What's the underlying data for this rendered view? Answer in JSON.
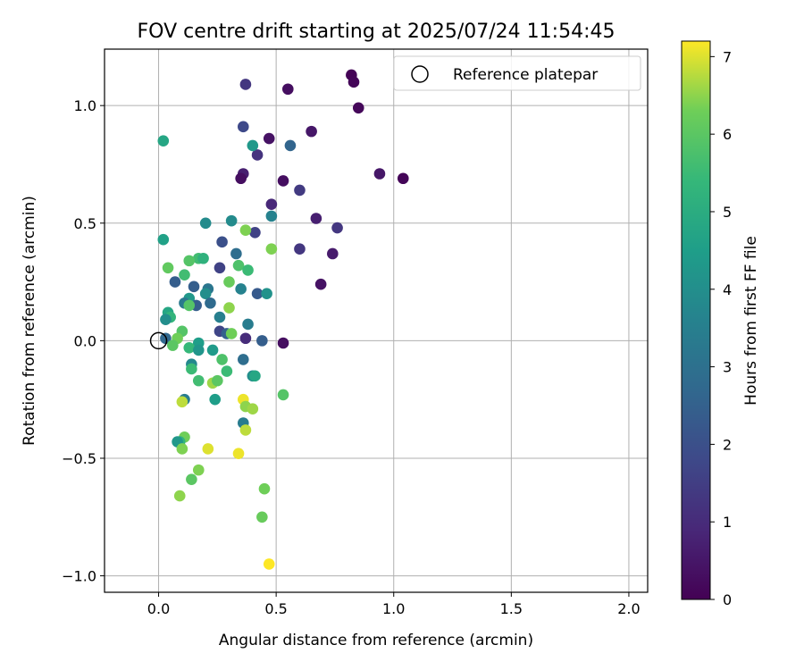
{
  "chart_data": {
    "type": "scatter",
    "title": "FOV centre drift starting at 2025/07/24 11:54:45",
    "xlabel": "Angular distance from reference (arcmin)",
    "ylabel": "Rotation from reference (arcmin)",
    "xlim": [
      -0.23,
      2.08
    ],
    "ylim": [
      -1.07,
      1.24
    ],
    "xticks": [
      0.0,
      0.5,
      1.0,
      1.5,
      2.0
    ],
    "xtick_labels": [
      "0.0",
      "0.5",
      "1.0",
      "1.5",
      "2.0"
    ],
    "yticks": [
      -1.0,
      -0.5,
      0.0,
      0.5,
      1.0
    ],
    "ytick_labels": [
      "−1.0",
      "−0.5",
      "0.0",
      "0.5",
      "1.0"
    ],
    "grid": true,
    "legend": {
      "placement": "top-right",
      "entries": [
        "Reference platepar"
      ]
    },
    "reference_point": {
      "x": 0.0,
      "y": 0.0,
      "label": "Reference platepar"
    },
    "colorbar": {
      "label": "Hours from first FF file",
      "colormap": "viridis",
      "range": [
        0,
        7.2
      ],
      "ticks": [
        0,
        1,
        2,
        3,
        4,
        5,
        6,
        7
      ],
      "tick_labels": [
        "0",
        "1",
        "2",
        "3",
        "4",
        "5",
        "6",
        "7"
      ]
    },
    "points": [
      {
        "x": 0.82,
        "y": 1.13,
        "c": 0.05
      },
      {
        "x": 0.83,
        "y": 1.1,
        "c": 0.1
      },
      {
        "x": 0.85,
        "y": 0.99,
        "c": 0.15
      },
      {
        "x": 1.04,
        "y": 0.69,
        "c": 0.1
      },
      {
        "x": 0.94,
        "y": 0.71,
        "c": 0.5
      },
      {
        "x": 0.55,
        "y": 1.07,
        "c": 0.3
      },
      {
        "x": 0.37,
        "y": 1.09,
        "c": 1.3
      },
      {
        "x": 0.65,
        "y": 0.89,
        "c": 0.5
      },
      {
        "x": 0.47,
        "y": 0.86,
        "c": 0.4
      },
      {
        "x": 0.36,
        "y": 0.91,
        "c": 1.8
      },
      {
        "x": 0.42,
        "y": 0.79,
        "c": 1.2
      },
      {
        "x": 0.56,
        "y": 0.83,
        "c": 2.6
      },
      {
        "x": 0.4,
        "y": 0.83,
        "c": 4.3
      },
      {
        "x": 0.02,
        "y": 0.85,
        "c": 4.8
      },
      {
        "x": 0.36,
        "y": 0.71,
        "c": 0.7
      },
      {
        "x": 0.35,
        "y": 0.69,
        "c": 0.3
      },
      {
        "x": 0.53,
        "y": 0.68,
        "c": 0.3
      },
      {
        "x": 0.6,
        "y": 0.64,
        "c": 1.4
      },
      {
        "x": 0.48,
        "y": 0.58,
        "c": 0.9
      },
      {
        "x": 0.48,
        "y": 0.53,
        "c": 3.6
      },
      {
        "x": 0.67,
        "y": 0.52,
        "c": 0.7
      },
      {
        "x": 0.76,
        "y": 0.48,
        "c": 1.3
      },
      {
        "x": 0.31,
        "y": 0.51,
        "c": 3.9
      },
      {
        "x": 0.2,
        "y": 0.5,
        "c": 3.9
      },
      {
        "x": 0.41,
        "y": 0.46,
        "c": 1.6
      },
      {
        "x": 0.37,
        "y": 0.47,
        "c": 6.4
      },
      {
        "x": 0.02,
        "y": 0.43,
        "c": 4.6
      },
      {
        "x": 0.27,
        "y": 0.42,
        "c": 2.0
      },
      {
        "x": 0.6,
        "y": 0.39,
        "c": 1.3
      },
      {
        "x": 0.48,
        "y": 0.39,
        "c": 6.4
      },
      {
        "x": 0.74,
        "y": 0.37,
        "c": 0.6
      },
      {
        "x": 0.33,
        "y": 0.37,
        "c": 2.9
      },
      {
        "x": 0.17,
        "y": 0.35,
        "c": 5.6
      },
      {
        "x": 0.19,
        "y": 0.35,
        "c": 5.2
      },
      {
        "x": 0.13,
        "y": 0.34,
        "c": 5.9
      },
      {
        "x": 0.04,
        "y": 0.31,
        "c": 6.1
      },
      {
        "x": 0.26,
        "y": 0.31,
        "c": 1.6
      },
      {
        "x": 0.34,
        "y": 0.32,
        "c": 5.8
      },
      {
        "x": 0.38,
        "y": 0.3,
        "c": 5.5
      },
      {
        "x": 0.11,
        "y": 0.28,
        "c": 5.6
      },
      {
        "x": 0.07,
        "y": 0.25,
        "c": 2.4
      },
      {
        "x": 0.3,
        "y": 0.25,
        "c": 6.2
      },
      {
        "x": 0.69,
        "y": 0.24,
        "c": 0.4
      },
      {
        "x": 0.15,
        "y": 0.23,
        "c": 2.4
      },
      {
        "x": 0.21,
        "y": 0.22,
        "c": 3.2
      },
      {
        "x": 0.35,
        "y": 0.22,
        "c": 3.6
      },
      {
        "x": 0.42,
        "y": 0.2,
        "c": 2.3
      },
      {
        "x": 0.46,
        "y": 0.2,
        "c": 4.1
      },
      {
        "x": 0.2,
        "y": 0.2,
        "c": 4.0
      },
      {
        "x": 0.13,
        "y": 0.18,
        "c": 4.3
      },
      {
        "x": 0.11,
        "y": 0.16,
        "c": 3.3
      },
      {
        "x": 0.22,
        "y": 0.16,
        "c": 2.8
      },
      {
        "x": 0.16,
        "y": 0.15,
        "c": 2.4
      },
      {
        "x": 0.13,
        "y": 0.15,
        "c": 5.9
      },
      {
        "x": 0.3,
        "y": 0.14,
        "c": 6.5
      },
      {
        "x": 0.04,
        "y": 0.12,
        "c": 4.8
      },
      {
        "x": 0.05,
        "y": 0.1,
        "c": 5.3
      },
      {
        "x": 0.03,
        "y": 0.09,
        "c": 4.0
      },
      {
        "x": 0.26,
        "y": 0.1,
        "c": 3.5
      },
      {
        "x": 0.38,
        "y": 0.07,
        "c": 3.4
      },
      {
        "x": 0.1,
        "y": 0.04,
        "c": 5.9
      },
      {
        "x": 0.26,
        "y": 0.04,
        "c": 1.7
      },
      {
        "x": 0.29,
        "y": 0.03,
        "c": 2.5
      },
      {
        "x": 0.31,
        "y": 0.03,
        "c": 6.3
      },
      {
        "x": 0.08,
        "y": 0.01,
        "c": 6.3
      },
      {
        "x": 0.03,
        "y": 0.01,
        "c": 2.7
      },
      {
        "x": 0.37,
        "y": 0.01,
        "c": 1.0
      },
      {
        "x": 0.44,
        "y": 0.0,
        "c": 2.4
      },
      {
        "x": 0.17,
        "y": -0.01,
        "c": 4.5
      },
      {
        "x": 0.53,
        "y": -0.01,
        "c": 0.3
      },
      {
        "x": 0.06,
        "y": -0.02,
        "c": 6.0
      },
      {
        "x": 0.13,
        "y": -0.03,
        "c": 5.4
      },
      {
        "x": 0.17,
        "y": -0.04,
        "c": 4.2
      },
      {
        "x": 0.23,
        "y": -0.04,
        "c": 4.4
      },
      {
        "x": 0.27,
        "y": -0.08,
        "c": 5.8
      },
      {
        "x": 0.36,
        "y": -0.08,
        "c": 2.9
      },
      {
        "x": 0.14,
        "y": -0.1,
        "c": 3.8
      },
      {
        "x": 0.14,
        "y": -0.12,
        "c": 5.5
      },
      {
        "x": 0.29,
        "y": -0.13,
        "c": 5.5
      },
      {
        "x": 0.4,
        "y": -0.15,
        "c": 4.0
      },
      {
        "x": 0.41,
        "y": -0.15,
        "c": 4.8
      },
      {
        "x": 0.17,
        "y": -0.17,
        "c": 5.6
      },
      {
        "x": 0.23,
        "y": -0.18,
        "c": 6.6
      },
      {
        "x": 0.25,
        "y": -0.17,
        "c": 6.0
      },
      {
        "x": 0.53,
        "y": -0.23,
        "c": 5.9
      },
      {
        "x": 0.24,
        "y": -0.25,
        "c": 4.5
      },
      {
        "x": 0.36,
        "y": -0.25,
        "c": 7.1
      },
      {
        "x": 0.11,
        "y": -0.25,
        "c": 3.4
      },
      {
        "x": 0.1,
        "y": -0.26,
        "c": 6.8
      },
      {
        "x": 0.37,
        "y": -0.28,
        "c": 6.5
      },
      {
        "x": 0.4,
        "y": -0.29,
        "c": 6.6
      },
      {
        "x": 0.36,
        "y": -0.35,
        "c": 3.4
      },
      {
        "x": 0.37,
        "y": -0.38,
        "c": 6.8
      },
      {
        "x": 0.11,
        "y": -0.41,
        "c": 6.3
      },
      {
        "x": 0.09,
        "y": -0.43,
        "c": 5.3
      },
      {
        "x": 0.08,
        "y": -0.43,
        "c": 4.3
      },
      {
        "x": 0.1,
        "y": -0.46,
        "c": 6.4
      },
      {
        "x": 0.21,
        "y": -0.46,
        "c": 7.0
      },
      {
        "x": 0.34,
        "y": -0.48,
        "c": 7.1
      },
      {
        "x": 0.17,
        "y": -0.55,
        "c": 6.4
      },
      {
        "x": 0.14,
        "y": -0.59,
        "c": 6.0
      },
      {
        "x": 0.45,
        "y": -0.63,
        "c": 6.3
      },
      {
        "x": 0.09,
        "y": -0.66,
        "c": 6.5
      },
      {
        "x": 0.44,
        "y": -0.75,
        "c": 6.2
      },
      {
        "x": 0.47,
        "y": -0.95,
        "c": 7.2
      }
    ]
  }
}
